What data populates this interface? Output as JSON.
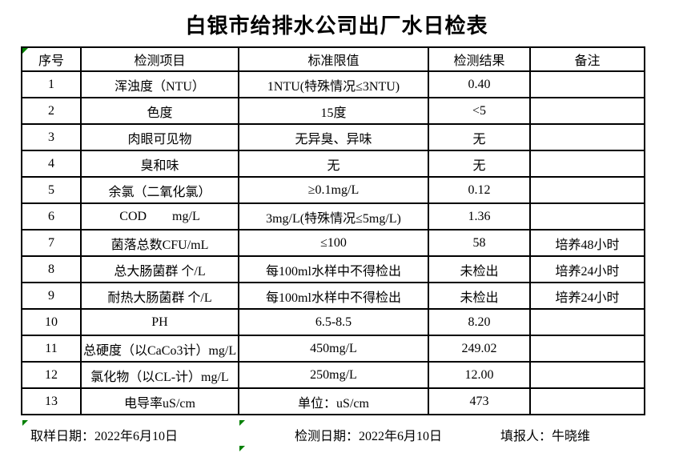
{
  "title": "白银市给排水公司出厂水日检表",
  "table": {
    "headers": [
      "序号",
      "检测项目",
      "标准限值",
      "检测结果",
      "备注"
    ],
    "rows": [
      {
        "no": "1",
        "item": "浑浊度（NTU）",
        "limit": "1NTU(特殊情况≤3NTU)",
        "result": "0.40",
        "remark": ""
      },
      {
        "no": "2",
        "item": "色度",
        "limit": "15度",
        "result": "<5",
        "remark": ""
      },
      {
        "no": "3",
        "item": "肉眼可见物",
        "limit": "无异臭、异味",
        "result": "无",
        "remark": ""
      },
      {
        "no": "4",
        "item": "臭和味",
        "limit": "无",
        "result": "无",
        "remark": ""
      },
      {
        "no": "5",
        "item": "余氯（二氧化氯）",
        "limit": "≥0.1mg/L",
        "result": "0.12",
        "remark": ""
      },
      {
        "no": "6",
        "item": "COD        mg/L",
        "limit": "3mg/L(特殊情况≤5mg/L)",
        "result": "1.36",
        "remark": ""
      },
      {
        "no": "7",
        "item": "菌落总数CFU/mL",
        "limit": "≤100",
        "result": "58",
        "remark": "培养48小时"
      },
      {
        "no": "8",
        "item": "总大肠菌群 个/L",
        "limit": "每100ml水样中不得检出",
        "result": "未检出",
        "remark": "培养24小时"
      },
      {
        "no": "9",
        "item": "耐热大肠菌群 个/L",
        "limit": "每100ml水样中不得检出",
        "result": "未检出",
        "remark": "培养24小时"
      },
      {
        "no": "10",
        "item": "PH",
        "limit": "6.5-8.5",
        "result": "8.20",
        "remark": ""
      },
      {
        "no": "11",
        "item": "总硬度（以CaCo3计）mg/L",
        "limit": "450mg/L",
        "result": "249.02",
        "remark": ""
      },
      {
        "no": "12",
        "item": "氯化物（以CL-计）mg/L",
        "limit": "250mg/L",
        "result": "12.00",
        "remark": ""
      },
      {
        "no": "13",
        "item": "电导率uS/cm",
        "limit": "单位：uS/cm",
        "result": "473",
        "remark": ""
      }
    ]
  },
  "footer": {
    "sample_date": "取样日期：2022年6月10日",
    "test_date": "检测日期：2022年6月10日",
    "reporter": "填报人：牛晓维"
  },
  "colors": {
    "border": "#000000",
    "error_marker_green": "#008000",
    "background": "#ffffff"
  }
}
